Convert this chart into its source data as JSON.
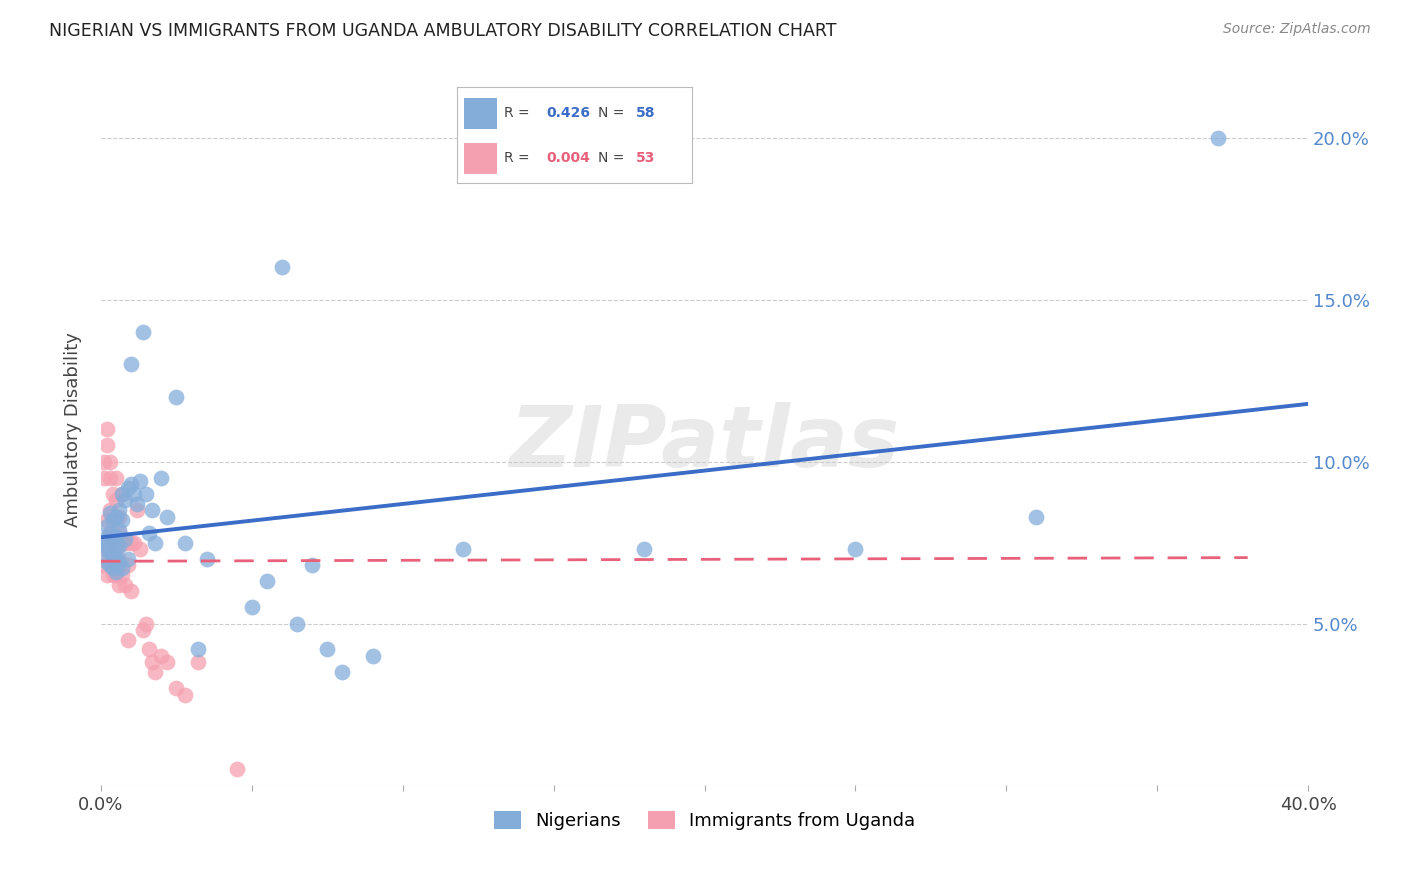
{
  "title": "NIGERIAN VS IMMIGRANTS FROM UGANDA AMBULATORY DISABILITY CORRELATION CHART",
  "source": "Source: ZipAtlas.com",
  "ylabel": "Ambulatory Disability",
  "xlim": [
    0.0,
    0.4
  ],
  "ylim": [
    0.0,
    0.22
  ],
  "color_blue": "#85ADDA",
  "color_pink": "#F5A0B0",
  "line_blue": "#3B6CC7",
  "line_pink": "#E8607A",
  "watermark": "ZIPatlas",
  "watermark_color": "#CCCCCC",
  "legend_r1": "0.426",
  "legend_n1": "58",
  "legend_r2": "0.004",
  "legend_n2": "53",
  "nigerians_x": [
    0.001,
    0.001,
    0.002,
    0.002,
    0.002,
    0.003,
    0.003,
    0.003,
    0.003,
    0.004,
    0.004,
    0.004,
    0.004,
    0.005,
    0.005,
    0.005,
    0.005,
    0.005,
    0.006,
    0.006,
    0.006,
    0.006,
    0.007,
    0.007,
    0.007,
    0.008,
    0.008,
    0.009,
    0.009,
    0.01,
    0.01,
    0.011,
    0.012,
    0.013,
    0.014,
    0.015,
    0.016,
    0.017,
    0.018,
    0.02,
    0.022,
    0.025,
    0.028,
    0.032,
    0.035,
    0.05,
    0.055,
    0.06,
    0.065,
    0.07,
    0.075,
    0.08,
    0.09,
    0.12,
    0.18,
    0.25,
    0.31,
    0.37
  ],
  "nigerians_y": [
    0.073,
    0.076,
    0.074,
    0.069,
    0.08,
    0.072,
    0.068,
    0.078,
    0.084,
    0.071,
    0.075,
    0.067,
    0.082,
    0.07,
    0.066,
    0.077,
    0.073,
    0.083,
    0.069,
    0.074,
    0.079,
    0.085,
    0.067,
    0.082,
    0.09,
    0.076,
    0.088,
    0.092,
    0.07,
    0.093,
    0.13,
    0.09,
    0.087,
    0.094,
    0.14,
    0.09,
    0.078,
    0.085,
    0.075,
    0.095,
    0.083,
    0.12,
    0.075,
    0.042,
    0.07,
    0.055,
    0.063,
    0.16,
    0.05,
    0.068,
    0.042,
    0.035,
    0.04,
    0.073,
    0.073,
    0.073,
    0.083,
    0.2
  ],
  "uganda_x": [
    0.001,
    0.001,
    0.001,
    0.001,
    0.002,
    0.002,
    0.002,
    0.002,
    0.002,
    0.003,
    0.003,
    0.003,
    0.003,
    0.003,
    0.003,
    0.004,
    0.004,
    0.004,
    0.004,
    0.004,
    0.004,
    0.005,
    0.005,
    0.005,
    0.005,
    0.005,
    0.006,
    0.006,
    0.006,
    0.006,
    0.007,
    0.007,
    0.007,
    0.008,
    0.008,
    0.009,
    0.009,
    0.01,
    0.01,
    0.011,
    0.012,
    0.013,
    0.014,
    0.015,
    0.016,
    0.017,
    0.018,
    0.02,
    0.022,
    0.025,
    0.028,
    0.032,
    0.045
  ],
  "uganda_y": [
    0.075,
    0.095,
    0.1,
    0.068,
    0.11,
    0.105,
    0.072,
    0.082,
    0.065,
    0.078,
    0.095,
    0.1,
    0.068,
    0.075,
    0.085,
    0.073,
    0.09,
    0.082,
    0.078,
    0.065,
    0.07,
    0.083,
    0.088,
    0.095,
    0.065,
    0.075,
    0.078,
    0.083,
    0.07,
    0.062,
    0.075,
    0.09,
    0.065,
    0.075,
    0.062,
    0.068,
    0.045,
    0.075,
    0.06,
    0.075,
    0.085,
    0.073,
    0.048,
    0.05,
    0.042,
    0.038,
    0.035,
    0.04,
    0.038,
    0.03,
    0.028,
    0.038,
    0.005
  ]
}
